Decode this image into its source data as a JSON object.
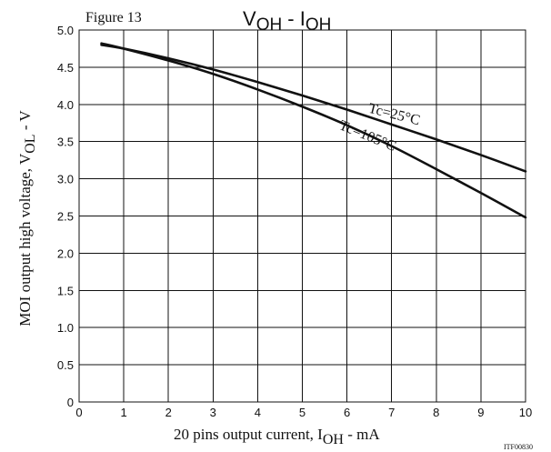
{
  "figure_label": "Figure 13",
  "corner_code": "ITF00830",
  "chart_data": {
    "type": "line",
    "title": {
      "main": "V",
      "sub1": "OH",
      "sep": " - I",
      "sub2": "OH"
    },
    "xlabel": {
      "pre": "20 pins output current, I",
      "sub": "OH",
      "post": " - mA"
    },
    "ylabel": {
      "pre": "MOI output high voltage, V",
      "sub": "OL",
      "post": " - V"
    },
    "xlim": [
      0,
      10
    ],
    "ylim": [
      0,
      5.0
    ],
    "x_ticks": [
      "0",
      "1",
      "2",
      "3",
      "4",
      "5",
      "6",
      "7",
      "8",
      "9",
      "10"
    ],
    "y_ticks": [
      "0",
      "0.5",
      "1.0",
      "1.5",
      "2.0",
      "2.5",
      "3.0",
      "3.5",
      "4.0",
      "4.5",
      "5.0"
    ],
    "grid": true,
    "series": [
      {
        "name": "Tc=25°C",
        "x": [
          0.5,
          1,
          2,
          3,
          4,
          5,
          6,
          7,
          8,
          9,
          10
        ],
        "y": [
          4.8,
          4.75,
          4.62,
          4.47,
          4.3,
          4.12,
          3.93,
          3.73,
          3.53,
          3.32,
          3.1
        ]
      },
      {
        "name": "Tc=105°C",
        "x": [
          0.5,
          1,
          2,
          3,
          4,
          5,
          6,
          7,
          8,
          9,
          10
        ],
        "y": [
          4.82,
          4.75,
          4.59,
          4.41,
          4.2,
          3.97,
          3.72,
          3.44,
          3.13,
          2.81,
          2.48
        ]
      }
    ]
  }
}
